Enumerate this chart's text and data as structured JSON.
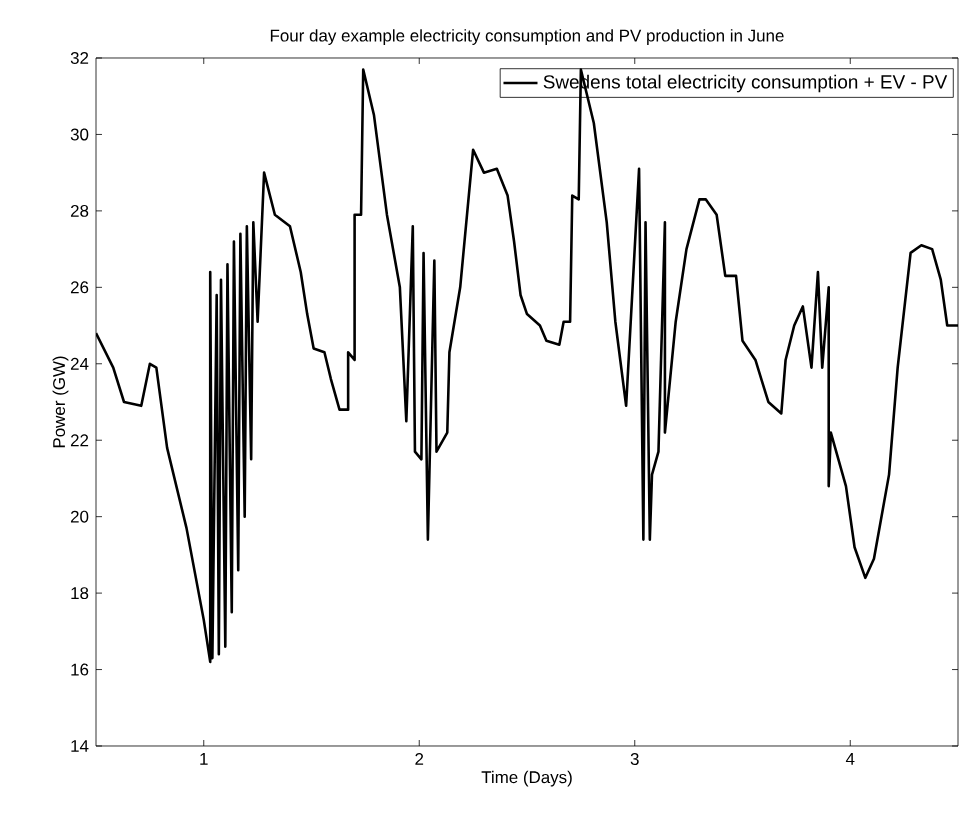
{
  "chart_data": {
    "type": "line",
    "title": "Four day example electricity consumption and PV production in June",
    "xlabel": "Time (Days)",
    "ylabel": "Power (GW)",
    "xlim": [
      0.5,
      4.5
    ],
    "xticks": [
      1,
      2,
      3,
      4
    ],
    "ylim": [
      14,
      32
    ],
    "yticks": [
      14,
      16,
      18,
      20,
      22,
      24,
      26,
      28,
      30,
      32
    ],
    "grid": false,
    "legend": "top right",
    "marker": "none",
    "line_style": "solid",
    "x": [
      0.5,
      0.58,
      0.63,
      0.71,
      0.75,
      0.78,
      0.83,
      0.92,
      1.0,
      1.03,
      1.03,
      1.04,
      1.06,
      1.07,
      1.08,
      1.1,
      1.11,
      1.13,
      1.14,
      1.16,
      1.17,
      1.19,
      1.2,
      1.22,
      1.23,
      1.25,
      1.28,
      1.33,
      1.4,
      1.45,
      1.48,
      1.51,
      1.56,
      1.59,
      1.63,
      1.67,
      1.67,
      1.7,
      1.7,
      1.73,
      1.74,
      1.79,
      1.85,
      1.91,
      1.94,
      1.97,
      1.98,
      2.01,
      2.02,
      2.04,
      2.07,
      2.08,
      2.13,
      2.14,
      2.19,
      2.25,
      2.3,
      2.36,
      2.41,
      2.44,
      2.47,
      2.5,
      2.56,
      2.59,
      2.65,
      2.67,
      2.7,
      2.71,
      2.74,
      2.75,
      2.81,
      2.87,
      2.91,
      2.96,
      3.02,
      3.04,
      3.05,
      3.07,
      3.08,
      3.11,
      3.14,
      3.14,
      3.19,
      3.24,
      3.3,
      3.33,
      3.38,
      3.42,
      3.47,
      3.5,
      3.56,
      3.62,
      3.68,
      3.7,
      3.74,
      3.78,
      3.82,
      3.85,
      3.87,
      3.9,
      3.9,
      3.91,
      3.98,
      4.02,
      4.07,
      4.11,
      4.18,
      4.22,
      4.28,
      4.33,
      4.38,
      4.42,
      4.45,
      4.47,
      4.5
    ],
    "series": [
      {
        "name": "Swedens total electricity consumption + EV - PV",
        "color": "#000000",
        "values": [
          24.8,
          23.9,
          23.0,
          22.9,
          24.0,
          23.9,
          21.8,
          19.7,
          17.3,
          16.2,
          26.4,
          16.3,
          25.8,
          16.4,
          26.2,
          16.6,
          26.6,
          17.5,
          27.2,
          18.6,
          27.4,
          20.0,
          27.6,
          21.5,
          27.7,
          25.1,
          29.0,
          27.9,
          27.6,
          26.4,
          25.3,
          24.4,
          24.3,
          23.6,
          22.8,
          22.8,
          24.3,
          24.1,
          27.9,
          27.9,
          31.7,
          30.5,
          27.9,
          26.0,
          22.5,
          27.6,
          21.7,
          21.5,
          26.9,
          19.4,
          26.7,
          21.7,
          22.2,
          24.3,
          26.0,
          29.6,
          29.0,
          29.1,
          28.4,
          27.2,
          25.8,
          25.3,
          25.0,
          24.6,
          24.5,
          25.1,
          25.1,
          28.4,
          28.3,
          31.7,
          30.3,
          27.7,
          25.1,
          22.9,
          29.1,
          19.4,
          27.7,
          19.4,
          21.1,
          21.7,
          27.7,
          22.2,
          25.1,
          27.0,
          28.3,
          28.3,
          27.9,
          26.3,
          26.3,
          24.6,
          24.1,
          23.0,
          22.7,
          24.1,
          25.0,
          25.5,
          23.9,
          26.4,
          23.9,
          26.0,
          20.8,
          22.2,
          20.8,
          19.2,
          18.4,
          18.9,
          21.1,
          23.9,
          26.9,
          27.1,
          27.0,
          26.2,
          25.0,
          25.0,
          25.0
        ]
      }
    ]
  }
}
